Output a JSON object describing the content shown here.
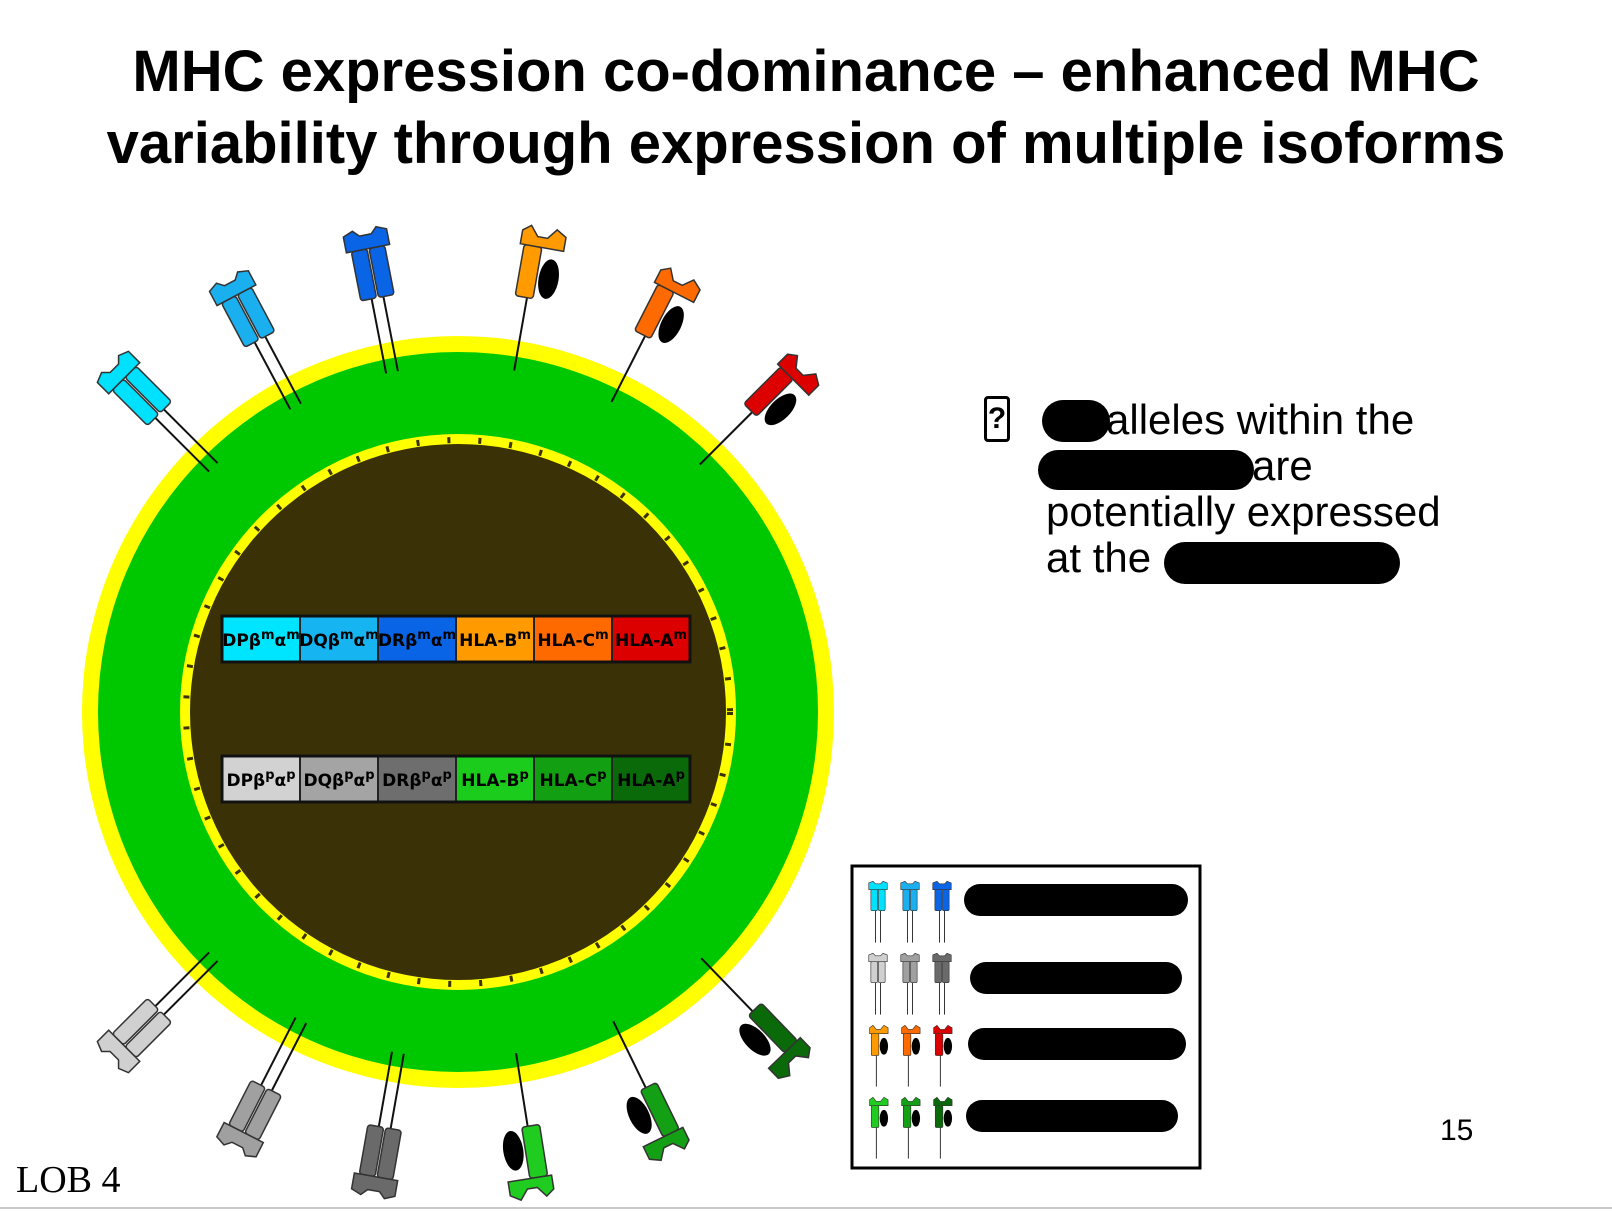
{
  "title": {
    "line1": "MHC expression co-dominance – enhanced MHC",
    "line2": "variability through expression of multiple isoforms"
  },
  "colors": {
    "cell_outer": "#ffff00",
    "cytoplasm": "#00c800",
    "nucleus": "#3a3206",
    "nucleus_border": "#ffff00",
    "mhc_ii_maternal": [
      "#00e0ff",
      "#1ab0f0",
      "#0a64e6"
    ],
    "mhc_i_maternal": [
      "#ff9a00",
      "#ff6a00",
      "#dc0000"
    ],
    "mhc_ii_paternal": [
      "#d0d0d0",
      "#a0a0a0",
      "#6a6a6a"
    ],
    "mhc_i_paternal": [
      "#1fcc1f",
      "#14a014",
      "#0a6a0a"
    ],
    "beta2m": "#000000"
  },
  "chromosome_maternal": [
    {
      "label": "DPβ",
      "sup1": "m",
      "mid": "α",
      "sup2": "m",
      "color": "#00e5ff"
    },
    {
      "label": "DQβ",
      "sup1": "m",
      "mid": "α",
      "sup2": "m",
      "color": "#17b4f2"
    },
    {
      "label": "DRβ",
      "sup1": "m",
      "mid": "α",
      "sup2": "m",
      "color": "#0a64e6"
    },
    {
      "label": "HLA-B",
      "sup1": "m",
      "mid": "",
      "sup2": "",
      "color": "#ff9a00"
    },
    {
      "label": "HLA-C",
      "sup1": "m",
      "mid": "",
      "sup2": "",
      "color": "#ff6a00"
    },
    {
      "label": "HLA-A",
      "sup1": "m",
      "mid": "",
      "sup2": "",
      "color": "#dc0000"
    }
  ],
  "chromosome_paternal": [
    {
      "label": "DPβ",
      "sup1": "p",
      "mid": "α",
      "sup2": "p",
      "color": "#d2d2d2"
    },
    {
      "label": "DQβ",
      "sup1": "p",
      "mid": "α",
      "sup2": "p",
      "color": "#a4a4a4"
    },
    {
      "label": "DRβ",
      "sup1": "p",
      "mid": "α",
      "sup2": "p",
      "color": "#6e6e6e"
    },
    {
      "label": "HLA-B",
      "sup1": "p",
      "mid": "",
      "sup2": "",
      "color": "#1ccc1c"
    },
    {
      "label": "HLA-C",
      "sup1": "p",
      "mid": "",
      "sup2": "",
      "color": "#12a012"
    },
    {
      "label": "HLA-A",
      "sup1": "p",
      "mid": "",
      "sup2": "",
      "color": "#0a6a0a"
    }
  ],
  "bullet": {
    "icon": "question-box-icon",
    "line1": "alleles within the",
    "line2": "are",
    "line3": "potentially expressed",
    "line4": "at the"
  },
  "slide_number": "15",
  "footer_label": "LOB 4"
}
